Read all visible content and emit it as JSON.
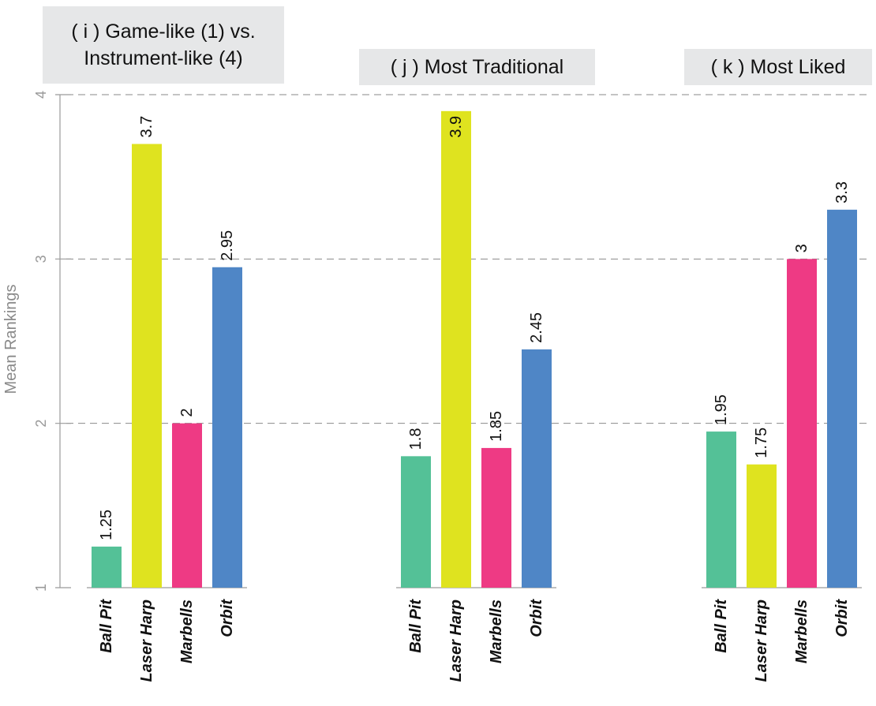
{
  "chart_data": {
    "type": "bar",
    "ylabel": "Mean Rankings",
    "ylim": [
      1,
      4
    ],
    "yticks": [
      "1",
      "2",
      "3",
      "4"
    ],
    "grid": "dashed horizontal",
    "colors": {
      "Ball Pit": "#54c197",
      "Laser Harp": "#dfe31f",
      "Marbells": "#ee3a84",
      "Orbit": "#4f86c6"
    },
    "panels": [
      {
        "title_lines": [
          "( i ) Game-like (1) vs.",
          "Instrument-like (4)"
        ],
        "categories": [
          "Ball Pit",
          "Laser Harp",
          "Marbells",
          "Orbit"
        ],
        "values": [
          1.25,
          3.7,
          2,
          2.95
        ],
        "labels": [
          "1.25",
          "3.7",
          "2",
          "2.95"
        ]
      },
      {
        "title_lines": [
          "( j ) Most Traditional"
        ],
        "categories": [
          "Ball Pit",
          "Laser Harp",
          "Marbells",
          "Orbit"
        ],
        "values": [
          1.8,
          3.9,
          1.85,
          2.45
        ],
        "labels": [
          "1.8",
          "3.9",
          "1.85",
          "2.45"
        ]
      },
      {
        "title_lines": [
          "( k ) Most Liked"
        ],
        "categories": [
          "Ball Pit",
          "Laser Harp",
          "Marbells",
          "Orbit"
        ],
        "values": [
          1.95,
          1.75,
          3,
          3.3
        ],
        "labels": [
          "1.95",
          "1.75",
          "3",
          "3.3"
        ]
      }
    ]
  }
}
